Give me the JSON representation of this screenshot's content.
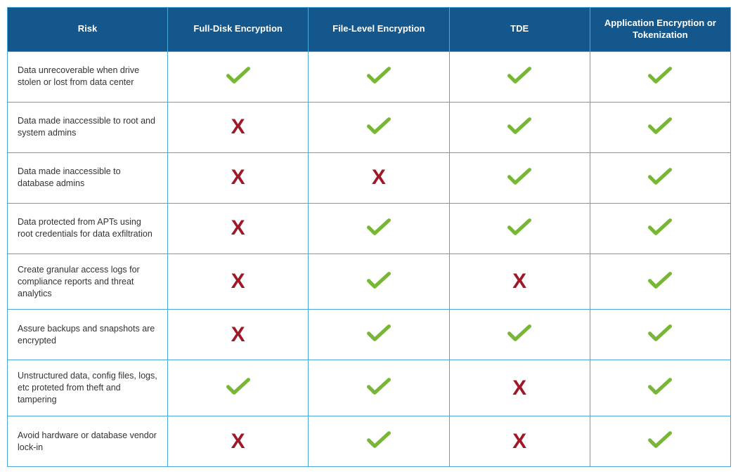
{
  "table": {
    "type": "table",
    "header_bg": "#14578c",
    "header_text_color": "#ffffff",
    "border_color": "#4aa8d8",
    "risk_text_color": "#333333",
    "check_color": "#77b735",
    "cross_color": "#a01828",
    "columns": [
      "Risk",
      "Full-Disk Encryption",
      "File-Level Encryption",
      "TDE",
      "Application Encryption or Tokenization"
    ],
    "rows": [
      {
        "risk": "Data unrecoverable when drive stolen or lost from data center",
        "cells": [
          "check",
          "check",
          "check",
          "check"
        ]
      },
      {
        "risk": "Data made inaccessible to root and system admins",
        "cells": [
          "cross",
          "check",
          "check",
          "check"
        ]
      },
      {
        "risk": "Data made inaccessible to database admins",
        "cells": [
          "cross",
          "cross",
          "check",
          "check"
        ]
      },
      {
        "risk": "Data protected from APTs using root credentials for data exfiltration",
        "cells": [
          "cross",
          "check",
          "check",
          "check"
        ]
      },
      {
        "risk": "Create granular access logs for compliance reports and threat analytics",
        "cells": [
          "cross",
          "check",
          "cross",
          "check"
        ]
      },
      {
        "risk": "Assure backups and snapshots are encrypted",
        "cells": [
          "cross",
          "check",
          "check",
          "check"
        ]
      },
      {
        "risk": "Unstructured data, config files, logs, etc proteted from theft and tampering",
        "cells": [
          "check",
          "check",
          "cross",
          "check"
        ]
      },
      {
        "risk": "Avoid hardware or database vendor lock-in",
        "cells": [
          "cross",
          "check",
          "cross",
          "check"
        ]
      }
    ]
  }
}
